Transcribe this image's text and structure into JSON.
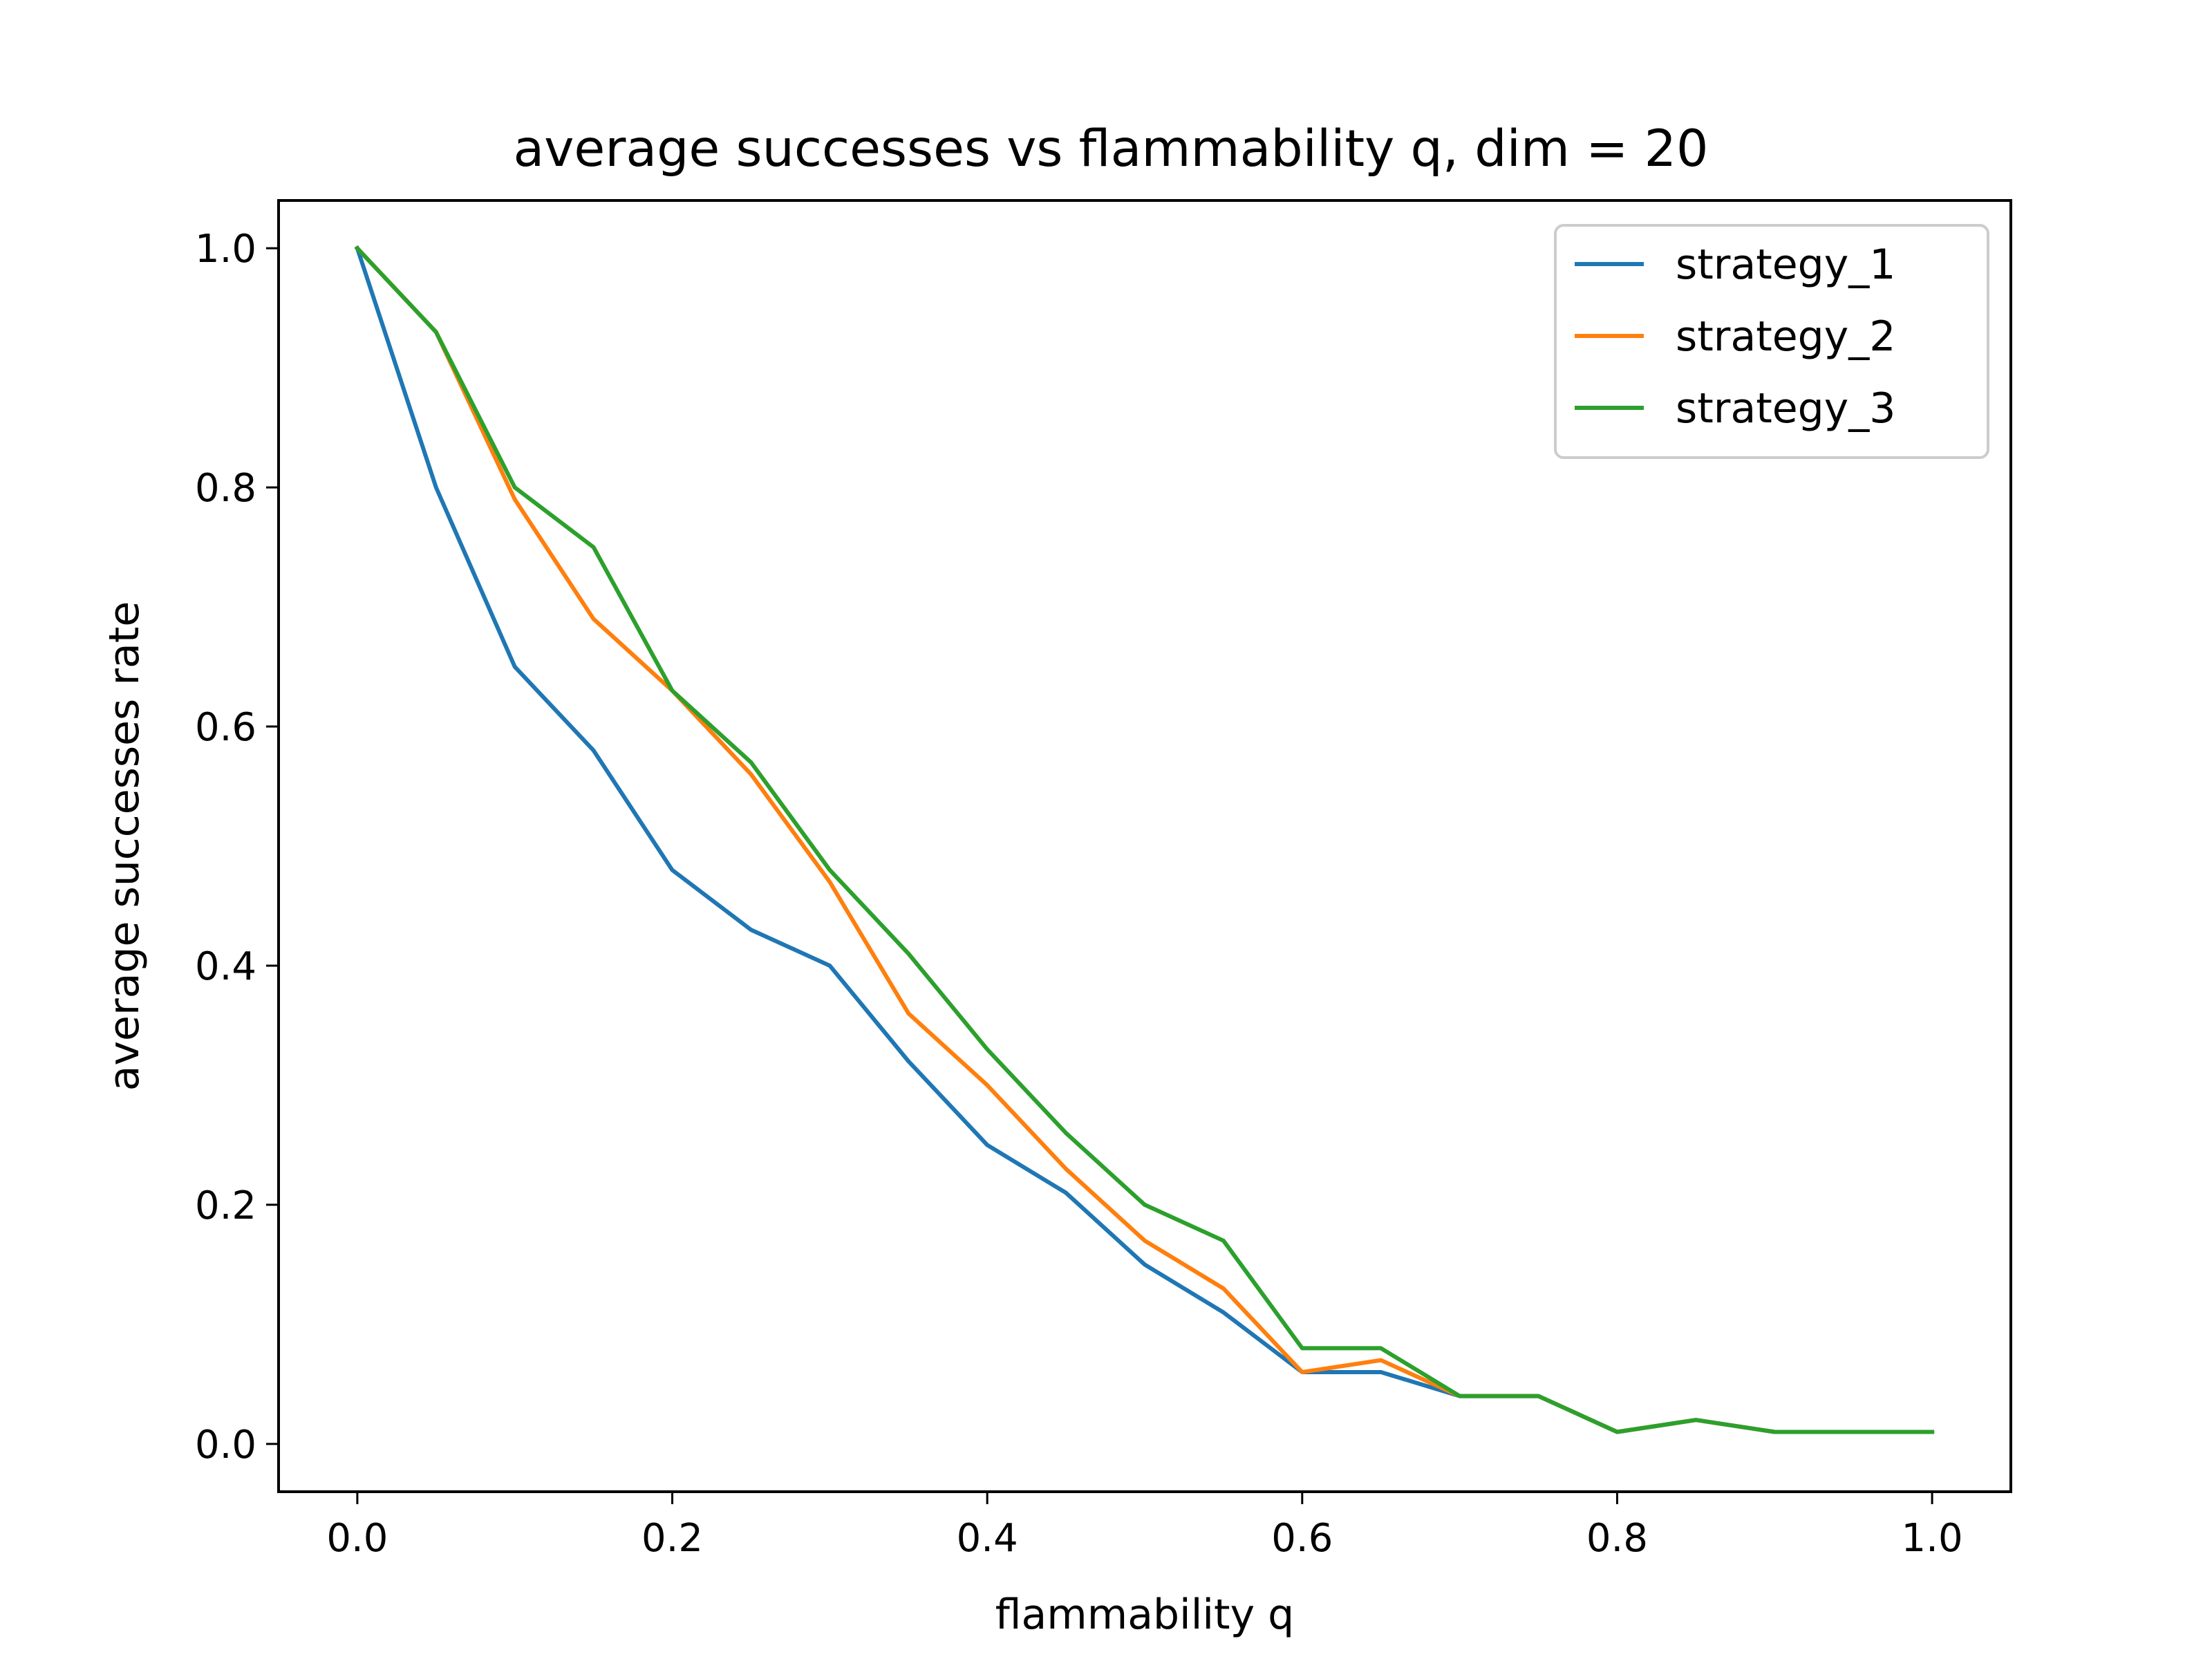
{
  "chart_data": {
    "type": "line",
    "title": "average successes vs flammability q, dim = 20",
    "xlabel": "flammability q",
    "ylabel": "average successes rate",
    "xlim": [
      -0.05,
      1.05
    ],
    "ylim": [
      -0.04,
      1.04
    ],
    "xticks": [
      0.0,
      0.2,
      0.4,
      0.6,
      0.8,
      1.0
    ],
    "xtick_labels": [
      "0.0",
      "0.2",
      "0.4",
      "0.6",
      "0.8",
      "1.0"
    ],
    "yticks": [
      0.0,
      0.2,
      0.4,
      0.6,
      0.8,
      1.0
    ],
    "ytick_labels": [
      "0.0",
      "0.2",
      "0.4",
      "0.6",
      "0.8",
      "1.0"
    ],
    "grid": false,
    "legend": "top-right",
    "x": [
      0.0,
      0.05,
      0.1,
      0.15,
      0.2,
      0.25,
      0.3,
      0.35,
      0.4,
      0.45,
      0.5,
      0.55,
      0.6,
      0.65,
      0.7,
      0.75,
      0.8,
      0.85,
      0.9,
      0.95,
      1.0
    ],
    "series": [
      {
        "name": "strategy_1",
        "color": "#1f77b4",
        "values": [
          1.0,
          0.8,
          0.65,
          0.58,
          0.48,
          0.43,
          0.4,
          0.32,
          0.25,
          0.21,
          0.15,
          0.11,
          0.06,
          0.06,
          0.04,
          0.04,
          0.01,
          0.02,
          0.01,
          0.01,
          0.01
        ]
      },
      {
        "name": "strategy_2",
        "color": "#ff7f0e",
        "values": [
          1.0,
          0.93,
          0.79,
          0.69,
          0.63,
          0.56,
          0.47,
          0.36,
          0.3,
          0.23,
          0.17,
          0.13,
          0.06,
          0.07,
          0.04,
          0.04,
          0.01,
          0.02,
          0.01,
          0.01,
          0.01
        ]
      },
      {
        "name": "strategy_3",
        "color": "#2ca02c",
        "values": [
          1.0,
          0.93,
          0.8,
          0.75,
          0.63,
          0.57,
          0.48,
          0.41,
          0.33,
          0.26,
          0.2,
          0.17,
          0.08,
          0.08,
          0.04,
          0.04,
          0.01,
          0.02,
          0.01,
          0.01,
          0.01
        ]
      }
    ]
  }
}
